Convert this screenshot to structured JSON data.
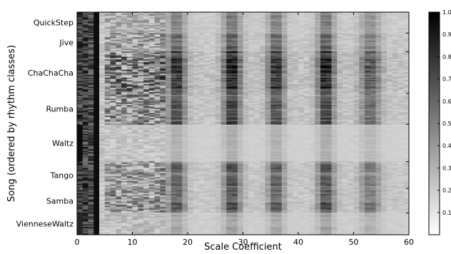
{
  "chart_data": {
    "type": "heatmap",
    "title": "",
    "xlabel": "Scale Coefficient",
    "ylabel": "Song (ordered by rhythm classes)",
    "xlim": [
      0,
      60
    ],
    "x_ticks": [
      0,
      10,
      20,
      30,
      40,
      50,
      60
    ],
    "rows": [
      {
        "label": "QuickStep",
        "start": 0.0,
        "end": 0.094
      },
      {
        "label": "Jive",
        "start": 0.094,
        "end": 0.178
      },
      {
        "label": "ChaChaCha",
        "start": 0.178,
        "end": 0.366
      },
      {
        "label": "Rumba",
        "start": 0.366,
        "end": 0.504
      },
      {
        "label": "Waltz",
        "start": 0.504,
        "end": 0.672
      },
      {
        "label": "Tango",
        "start": 0.672,
        "end": 0.792
      },
      {
        "label": "Samba",
        "start": 0.792,
        "end": 0.902
      },
      {
        "label": "VienneseWaltz",
        "start": 0.902,
        "end": 1.0
      }
    ],
    "colorbar": {
      "min": 0.0,
      "max": 1.0,
      "ticks": [
        "0.1",
        "0.2",
        "0.3",
        "0.4",
        "0.5",
        "0.6",
        "0.7",
        "0.8",
        "0.9",
        "1.0"
      ],
      "colormap": "gray_r"
    },
    "column_profile": {
      "peaks": [
        {
          "center": 18,
          "width": 1.6,
          "strength": 0.55
        },
        {
          "center": 28,
          "width": 1.6,
          "strength": 0.62
        },
        {
          "center": 36,
          "width": 1.5,
          "strength": 0.55
        },
        {
          "center": 45,
          "width": 1.5,
          "strength": 0.62
        },
        {
          "center": 53,
          "width": 1.8,
          "strength": 0.4
        }
      ],
      "bright_column": 3,
      "waltz_dark_column": 0
    }
  }
}
